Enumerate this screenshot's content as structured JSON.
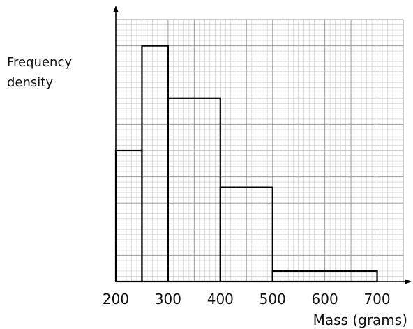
{
  "chart_data": {
    "type": "histogram",
    "xlabel": "Mass (grams)",
    "ylabel_lines": [
      "Frequency",
      "density"
    ],
    "x_ticks": [
      "200",
      "300",
      "400",
      "500",
      "600",
      "700"
    ],
    "xlim": [
      200,
      750
    ],
    "ylim": [
      0,
      10
    ],
    "grid": true,
    "bars": [
      {
        "x0": 200,
        "x1": 250,
        "value": 5
      },
      {
        "x0": 250,
        "x1": 300,
        "value": 9
      },
      {
        "x0": 300,
        "x1": 400,
        "value": 7
      },
      {
        "x0": 400,
        "x1": 500,
        "value": 3.6
      },
      {
        "x0": 500,
        "x1": 700,
        "value": 0.4
      }
    ]
  }
}
